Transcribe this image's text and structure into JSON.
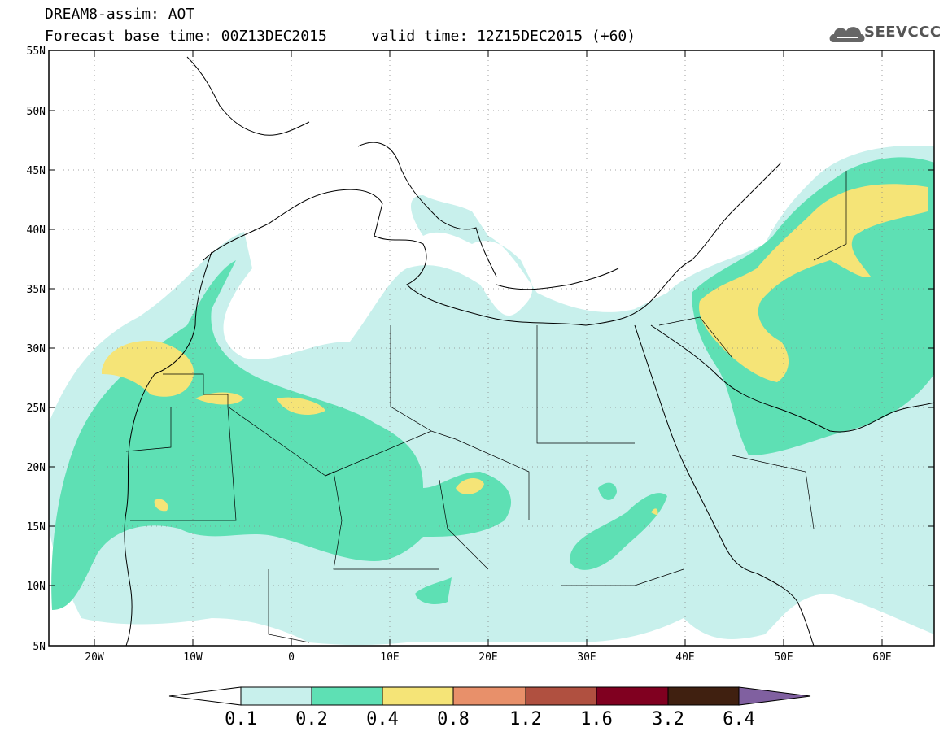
{
  "title": {
    "line1": "DREAM8-assim: AOT",
    "line2": "Forecast base time: 00Z13DEC2015     valid time: 12Z15DEC2015 (+60)"
  },
  "logo": {
    "text": "SEEVCCC",
    "icon": "cloud-logo-icon"
  },
  "map": {
    "lon_range": [
      -25,
      65
    ],
    "lat_range": [
      5,
      55
    ],
    "lat_ticks": [
      "55N",
      "50N",
      "45N",
      "40N",
      "35N",
      "30N",
      "25N",
      "20N",
      "15N",
      "10N",
      "5N"
    ],
    "lon_ticks": [
      "20W",
      "10W",
      "0",
      "10E",
      "20E",
      "30E",
      "40E",
      "50E",
      "60E"
    ],
    "grid": "dotted",
    "colors": {
      "c0_1": "#c8f0ec",
      "c0_2": "#5ee0b4",
      "c0_4": "#f5e477",
      "coast": "#000000",
      "frame": "#000000"
    }
  },
  "colorbar": {
    "labels": [
      "0.1",
      "0.2",
      "0.4",
      "0.8",
      "1.2",
      "1.6",
      "3.2",
      "6.4"
    ],
    "colors": [
      "#ffffff",
      "#c8f0ec",
      "#5ee0b4",
      "#f5e477",
      "#e8906a",
      "#b05040",
      "#800020",
      "#402010",
      "#8060a0"
    ]
  }
}
